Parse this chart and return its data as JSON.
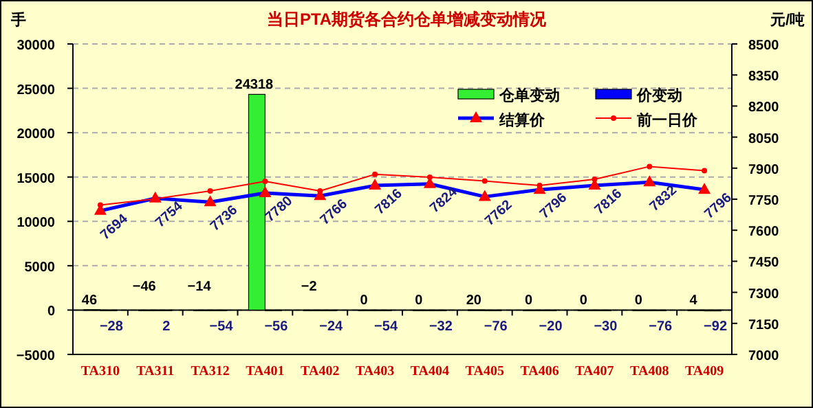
{
  "chart_data": {
    "type": "bar",
    "title": "当日PTA期货各合约仓单增减变动情况",
    "ylabel": "手",
    "y2label": "元/吨",
    "categories": [
      "TA310",
      "TA311",
      "TA312",
      "TA401",
      "TA402",
      "TA403",
      "TA404",
      "TA405",
      "TA406",
      "TA407",
      "TA408",
      "TA409"
    ],
    "ylim": [
      -5000,
      30000
    ],
    "yticks": [
      -5000,
      0,
      5000,
      10000,
      15000,
      20000,
      25000,
      30000
    ],
    "y2lim": [
      7000,
      8500
    ],
    "y2ticks": [
      7000,
      7150,
      7300,
      7450,
      7600,
      7750,
      7900,
      8050,
      8200,
      8350,
      8500
    ],
    "grid": "y",
    "legend": "top right",
    "series": [
      {
        "name": "仓单变动",
        "color": "#33ee33",
        "values": [
          46,
          -46,
          -14,
          24318,
          -2,
          0,
          0,
          20,
          0,
          0,
          0,
          4
        ],
        "value_labels": [
          "46",
          "−46",
          "−14",
          "24318",
          "−2",
          "0",
          "0",
          "20",
          "0",
          "0",
          "0",
          "4"
        ]
      },
      {
        "name": "价变动",
        "color": "#0000ff",
        "values": [
          -28,
          2,
          -54,
          -56,
          -24,
          -54,
          -32,
          -76,
          -20,
          -30,
          -76,
          -92
        ],
        "value_labels": [
          "−28",
          "2",
          "−54",
          "−56",
          "−24",
          "−54",
          "−32",
          "−76",
          "−20",
          "−30",
          "−76",
          "−92"
        ]
      },
      {
        "name": "结算价",
        "type": "line",
        "axis": "y2",
        "color": "#0000ff",
        "marker": "triangle",
        "values": [
          7694,
          7754,
          7736,
          7780,
          7766,
          7816,
          7824,
          7762,
          7796,
          7816,
          7832,
          7796
        ],
        "value_labels": [
          "7694",
          "7754",
          "7736",
          "7780",
          "7766",
          "7816",
          "7824",
          "7762",
          "7796",
          "7816",
          "7832",
          "7796"
        ]
      },
      {
        "name": "前一日价",
        "type": "line",
        "axis": "y2",
        "color": "#ff0000",
        "marker": "circle",
        "values": [
          7722,
          7752,
          7790,
          7836,
          7790,
          7870,
          7856,
          7838,
          7816,
          7846,
          7908,
          7888
        ]
      }
    ]
  }
}
